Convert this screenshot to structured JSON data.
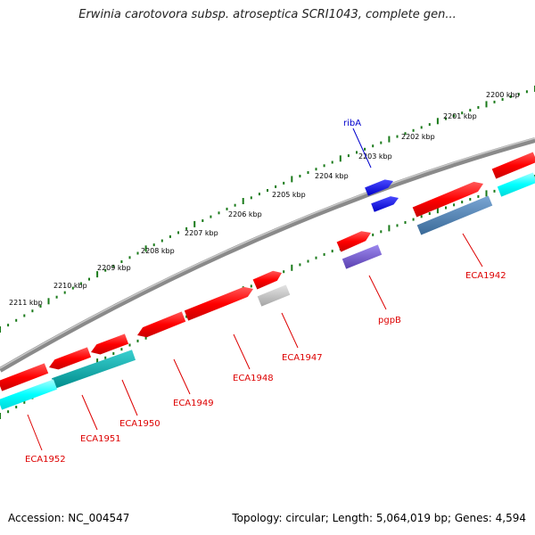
{
  "title": "Erwinia carotovora subsp. atroseptica SCRI1043, complete gen...",
  "footer": {
    "accession": "Accession: NC_004547",
    "info": "Topology: circular; Length: 5,064,019 bp; Genes: 4,594"
  },
  "colors": {
    "backbone": "#8a8a8a",
    "ruler": "#1a7a1a",
    "cds": "#ff0000",
    "cds_label": "#dd0000",
    "ribA": "#0000ee",
    "ribA_label": "#0000cc",
    "cyan": "#00ffff",
    "teal": "#00b0b0",
    "steel": "#4a7aa8",
    "purple": "#7a5ccc",
    "gray": "#c0c0c0"
  },
  "ruler_labels": [
    "2200 kbp",
    "2201 kbp",
    "2202 kbp",
    "2203 kbp",
    "2204 kbp",
    "2205 kbp",
    "2206 kbp",
    "2207 kbp",
    "2208 kbp",
    "2209 kbp",
    "2210 kbp",
    "2211 kbp"
  ],
  "gene_labels": {
    "ribA": "ribA",
    "ECA1942": "ECA1942",
    "pgpB": "pgpB",
    "ECA1947": "ECA1947",
    "ECA1948": "ECA1948",
    "ECA1949": "ECA1949",
    "ECA1950": "ECA1950",
    "ECA1951": "ECA1951",
    "ECA1952": "ECA1952"
  }
}
